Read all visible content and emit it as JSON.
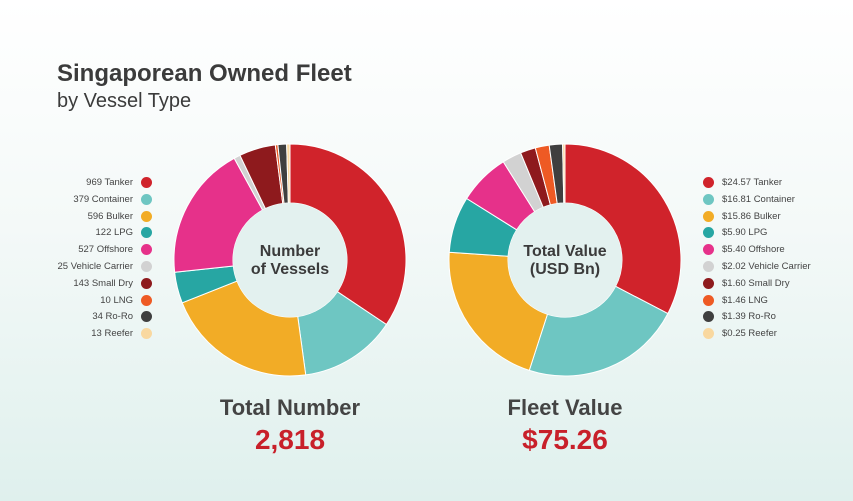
{
  "header": {
    "title": "Singaporean Owned Fleet",
    "subtitle": "by Vessel Type"
  },
  "chart_data": [
    {
      "type": "pie",
      "center_label": [
        "Number",
        "of Vessels"
      ],
      "categories": [
        "Tanker",
        "Container",
        "Bulker",
        "LPG",
        "Offshore",
        "Vehicle Carrier",
        "Small Dry",
        "LNG",
        "Ro-Ro",
        "Reefer"
      ],
      "values": [
        969,
        379,
        596,
        122,
        527,
        25,
        143,
        10,
        34,
        13
      ],
      "legend_labels": [
        "969 Tanker",
        "379 Container",
        "596 Bulker",
        "122 LPG",
        "527 Offshore",
        "25 Vehicle Carrier",
        "143 Small Dry",
        "10 LNG",
        "34 Ro-Ro",
        "13 Reefer"
      ],
      "colors": [
        "#d0232b",
        "#6ec6c2",
        "#f2ac26",
        "#27a6a3",
        "#e6318a",
        "#d2d2d2",
        "#8e1a1d",
        "#ee5a24",
        "#3f3f3f",
        "#f9d8a0"
      ],
      "legend_position": "left",
      "total_label": "Total Number",
      "total_value": "2,818"
    },
    {
      "type": "pie",
      "center_label": [
        "Total Value",
        "(USD Bn)"
      ],
      "categories": [
        "Tanker",
        "Container",
        "Bulker",
        "LPG",
        "Offshore",
        "Vehicle Carrier",
        "Small Dry",
        "LNG",
        "Ro-Ro",
        "Reefer"
      ],
      "values": [
        24.57,
        16.81,
        15.86,
        5.9,
        5.4,
        2.02,
        1.6,
        1.46,
        1.39,
        0.25
      ],
      "legend_labels": [
        "$24.57 Tanker",
        "$16.81 Container",
        "$15.86 Bulker",
        "$5.90 LPG",
        "$5.40 Offshore",
        "$2.02 Vehicle Carrier",
        "$1.60 Small Dry",
        "$1.46 LNG",
        "$1.39 Ro-Ro",
        "$0.25 Reefer"
      ],
      "colors": [
        "#d0232b",
        "#6ec6c2",
        "#f2ac26",
        "#27a6a3",
        "#e6318a",
        "#d2d2d2",
        "#8e1a1d",
        "#ee5a24",
        "#3f3f3f",
        "#f9d8a0"
      ],
      "legend_position": "right",
      "total_label": "Fleet Value",
      "total_value": "$75.26"
    }
  ]
}
